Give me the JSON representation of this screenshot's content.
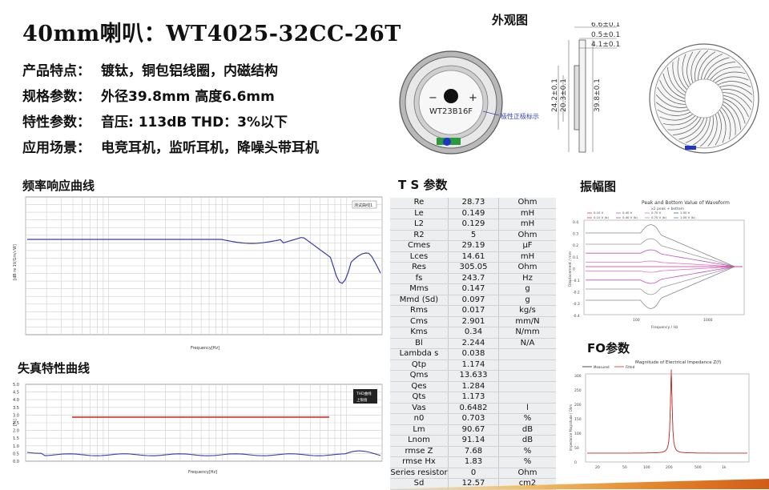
{
  "title": "40mm喇叭：WT4025-32CC-26T",
  "specs": [
    {
      "key": "产品特点：",
      "value": "镀钛，铜包铝线圈，内磁结构"
    },
    {
      "key": "规格参数：",
      "value": "外径39.8mm   高度6.6mm"
    },
    {
      "key": "特性参数：",
      "value": "音压: 113dB   THD：3%以下"
    },
    {
      "key": "应用场景：",
      "value": "电竞耳机，监听耳机，降噪头带耳机"
    }
  ],
  "sections": {
    "appearance": "外观图",
    "freq_response": "频率响应曲线",
    "ts_params": "T S 参数",
    "distortion": "失真特性曲线",
    "amplitude": "振幅图",
    "fo": "FO参数"
  },
  "drawing": {
    "model_label": "WT23B16F",
    "polarity_note": "极性正极标示",
    "minus": "−",
    "plus": "+",
    "dims_top": [
      "6.6±0.1",
      "0.5±0.1",
      "4.1±0.1"
    ],
    "dims_side": [
      "24.2±0.1",
      "20.3±0.1",
      "39.8±0.1"
    ]
  },
  "freq_chart": {
    "legend": "测试曲线1",
    "xlabel": "Frequency[Hz]",
    "ylabel": "[dB re 1V/1m/√W]"
  },
  "thd_chart": {
    "legend_a": "THD曲线",
    "legend_b": "上限值",
    "xlabel": "Frequency[Hz]",
    "ylabel": "[%]",
    "yticks": [
      "5.0",
      "4.5",
      "4.0",
      "3.5",
      "3.0",
      "2.5",
      "2.0",
      "1.5",
      "1.0",
      "0.5",
      "0.0"
    ]
  },
  "ts_table": [
    [
      "Re",
      "28.73",
      "Ohm"
    ],
    [
      "Le",
      "0.149",
      "mH"
    ],
    [
      "L2",
      "0.129",
      "mH"
    ],
    [
      "R2",
      "5",
      "Ohm"
    ],
    [
      "Cmes",
      "29.19",
      "μF"
    ],
    [
      "Lces",
      "14.61",
      "mH"
    ],
    [
      "Res",
      "305.05",
      "Ohm"
    ],
    [
      "fs",
      "243.7",
      "Hz"
    ],
    [
      "Mms",
      "0.147",
      "g"
    ],
    [
      "Mmd (Sd)",
      "0.097",
      "g"
    ],
    [
      "Rms",
      "0.017",
      "kg/s"
    ],
    [
      "Cms",
      "2.901",
      "mm/N"
    ],
    [
      "Kms",
      "0.34",
      "N/mm"
    ],
    [
      "Bl",
      "2.244",
      "N/A"
    ],
    [
      "Lambda s",
      "0.038",
      ""
    ],
    [
      "Qtp",
      "1.174",
      ""
    ],
    [
      "Qms",
      "13.633",
      ""
    ],
    [
      "Qes",
      "1.284",
      ""
    ],
    [
      "Qts",
      "1.173",
      ""
    ],
    [
      "Vas",
      "0.6482",
      "l"
    ],
    [
      "n0",
      "0.703",
      "%"
    ],
    [
      "Lm",
      "90.67",
      "dB"
    ],
    [
      "Lnom",
      "91.14",
      "dB"
    ],
    [
      "rmse Z",
      "7.68",
      "%"
    ],
    [
      "rmse Hx",
      "1.83",
      "%"
    ],
    [
      "Series resistor",
      "0",
      "Ohm"
    ],
    [
      "Sd",
      "12.57",
      "cm2"
    ]
  ],
  "amp_chart": {
    "title": "Peak and Bottom Value of Waveform",
    "subtitle": "x2 peak + bottom",
    "legend": [
      "0.10 V",
      "0.40 V",
      "0.70 V",
      "1.00 V",
      "0.10 V (b)",
      "0.40 V (b)",
      "0.70 V (b)",
      "1.00 V (b)"
    ],
    "xlabel": "Frequency / Hz",
    "ylabel": "Displacement / mm",
    "xticks": [
      "100",
      "1000"
    ],
    "yticks": [
      "0.4",
      "0.3",
      "0.2",
      "0.1",
      "0",
      "-0.1",
      "-0.2",
      "-0.3",
      "-0.4"
    ]
  },
  "fo_chart": {
    "title": "Magnitude of Electrical Impedance Z(f)",
    "legend": [
      "Measured",
      "Fitted"
    ],
    "ylabel": "Impedance Magnitude / Ohm",
    "yticks": [
      "300",
      "250",
      "200",
      "150",
      "100",
      "50",
      "0"
    ],
    "xticks": [
      "20",
      "50",
      "100",
      "200",
      "500",
      "1k"
    ]
  },
  "colors": {
    "curve": "#3a3aa8",
    "limit": "#d42020",
    "measured": "#222222",
    "fitted": "#d62828",
    "accent": "#e3822a"
  }
}
